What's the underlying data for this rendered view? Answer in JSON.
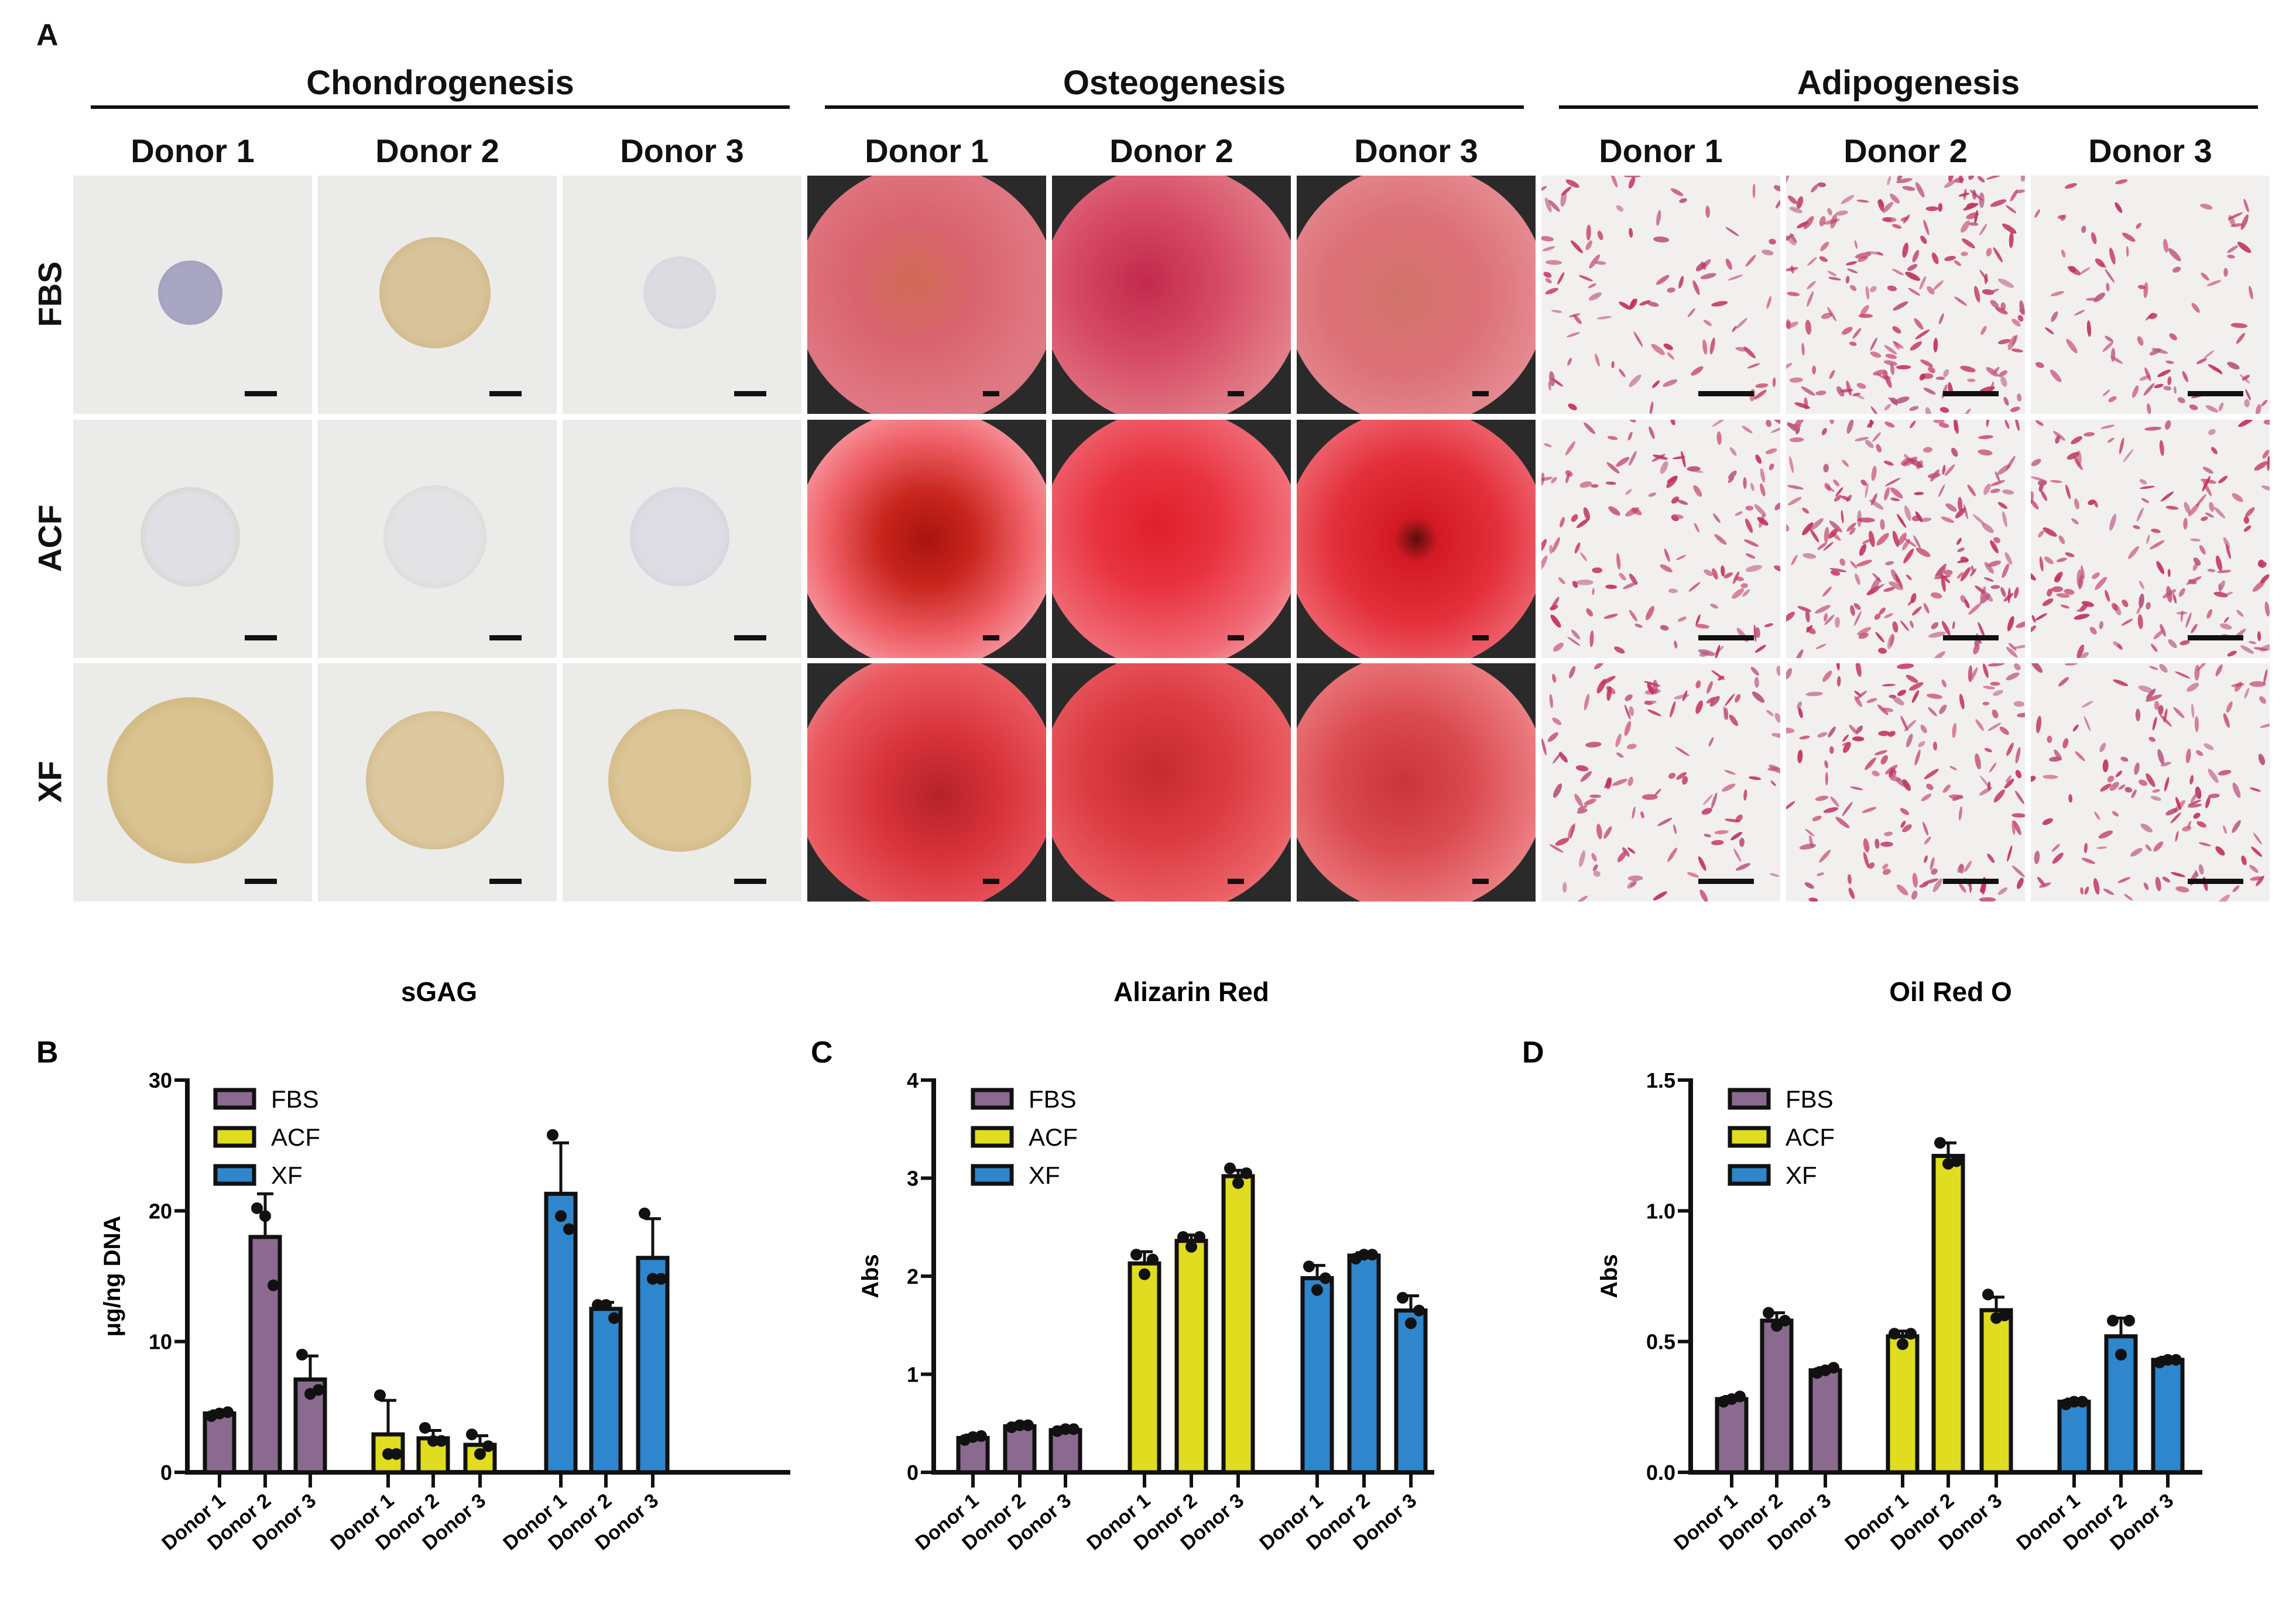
{
  "panel_a": {
    "letter": "A",
    "groups": [
      {
        "title": "Chondrogenesis",
        "type": "chondro"
      },
      {
        "title": "Osteogenesis",
        "type": "osteo"
      },
      {
        "title": "Adipogenesis",
        "type": "adipo"
      }
    ],
    "donors": [
      "Donor 1",
      "Donor 2",
      "Donor 3"
    ],
    "rows": [
      "FBS",
      "ACF",
      "XF"
    ]
  },
  "colors": {
    "FBS": "#8b6a8f",
    "ACF": "#e0dc1f",
    "XF": "#2f86cc"
  },
  "chart_data": [
    {
      "id": "B",
      "letter": "B",
      "type": "bar",
      "title": "sGAG",
      "ylabel": "μg/ng DNA",
      "ylim": [
        0,
        30
      ],
      "yticks": [
        0,
        10,
        20,
        30
      ],
      "ytick_labels": [
        "0",
        "10",
        "20",
        "30"
      ],
      "categories": [
        "Donor 1",
        "Donor 2",
        "Donor 3"
      ],
      "legend": [
        "FBS",
        "ACF",
        "XF"
      ],
      "legend_position": "top-left",
      "series": [
        {
          "name": "FBS",
          "values": [
            4.5,
            18.0,
            7.1
          ],
          "errors": [
            0.2,
            3.3,
            1.8
          ],
          "points": [
            [
              4.3,
              4.5,
              4.6
            ],
            [
              20.2,
              19.6,
              14.3
            ],
            [
              9.0,
              6.0,
              6.3
            ]
          ]
        },
        {
          "name": "ACF",
          "values": [
            2.9,
            2.6,
            2.1
          ],
          "errors": [
            2.6,
            0.6,
            0.7
          ],
          "points": [
            [
              5.9,
              1.4,
              1.4
            ],
            [
              3.4,
              2.4,
              2.4
            ],
            [
              2.9,
              1.4,
              2.0
            ]
          ]
        },
        {
          "name": "XF",
          "values": [
            21.3,
            12.5,
            16.4
          ],
          "errors": [
            3.9,
            0.5,
            3.0
          ],
          "points": [
            [
              25.8,
              19.6,
              18.6
            ],
            [
              12.8,
              12.8,
              11.8
            ],
            [
              19.8,
              14.8,
              14.8
            ]
          ]
        }
      ]
    },
    {
      "id": "C",
      "letter": "C",
      "type": "bar",
      "title": "Alizarin Red",
      "ylabel": "Abs",
      "ylim": [
        0,
        4
      ],
      "yticks": [
        0,
        1,
        2,
        3,
        4
      ],
      "ytick_labels": [
        "0",
        "1",
        "2",
        "3",
        "4"
      ],
      "categories": [
        "Donor 1",
        "Donor 2",
        "Donor 3"
      ],
      "legend": [
        "FBS",
        "ACF",
        "XF"
      ],
      "legend_position": "top-left",
      "series": [
        {
          "name": "FBS",
          "values": [
            0.35,
            0.47,
            0.43
          ],
          "errors": [
            0.03,
            0.03,
            0.03
          ],
          "points": [
            [
              0.33,
              0.36,
              0.37
            ],
            [
              0.46,
              0.48,
              0.48
            ],
            [
              0.42,
              0.44,
              0.44
            ]
          ]
        },
        {
          "name": "ACF",
          "values": [
            2.13,
            2.36,
            3.02
          ],
          "errors": [
            0.12,
            0.06,
            0.06
          ],
          "points": [
            [
              2.22,
              2.02,
              2.17
            ],
            [
              2.4,
              2.3,
              2.4
            ],
            [
              3.1,
              2.95,
              3.05
            ]
          ]
        },
        {
          "name": "XF",
          "values": [
            1.98,
            2.21,
            1.65
          ],
          "errors": [
            0.13,
            0.03,
            0.15
          ],
          "points": [
            [
              2.1,
              1.86,
              1.98
            ],
            [
              2.18,
              2.22,
              2.22
            ],
            [
              1.78,
              1.52,
              1.65
            ]
          ]
        }
      ]
    },
    {
      "id": "D",
      "letter": "D",
      "type": "bar",
      "title": "Oil Red O",
      "ylabel": "Abs",
      "ylim": [
        0,
        1.5
      ],
      "yticks": [
        0,
        0.5,
        1.0,
        1.5
      ],
      "ytick_labels": [
        "0.0",
        "0.5",
        "1.0",
        "1.5"
      ],
      "categories": [
        "Donor 1",
        "Donor 2",
        "Donor 3"
      ],
      "legend": [
        "FBS",
        "ACF",
        "XF"
      ],
      "legend_position": "top-left",
      "series": [
        {
          "name": "FBS",
          "values": [
            0.28,
            0.58,
            0.39
          ],
          "errors": [
            0.01,
            0.03,
            0.01
          ],
          "points": [
            [
              0.27,
              0.28,
              0.29
            ],
            [
              0.61,
              0.56,
              0.58
            ],
            [
              0.38,
              0.39,
              0.4
            ]
          ]
        },
        {
          "name": "ACF",
          "values": [
            0.52,
            1.21,
            0.62
          ],
          "errors": [
            0.02,
            0.05,
            0.05
          ],
          "points": [
            [
              0.53,
              0.49,
              0.53
            ],
            [
              1.26,
              1.18,
              1.19
            ],
            [
              0.68,
              0.59,
              0.6
            ]
          ]
        },
        {
          "name": "XF",
          "values": [
            0.27,
            0.52,
            0.43
          ],
          "errors": [
            0.01,
            0.07,
            0.01
          ],
          "points": [
            [
              0.26,
              0.27,
              0.27
            ],
            [
              0.58,
              0.45,
              0.58
            ],
            [
              0.42,
              0.43,
              0.43
            ]
          ]
        }
      ]
    }
  ]
}
